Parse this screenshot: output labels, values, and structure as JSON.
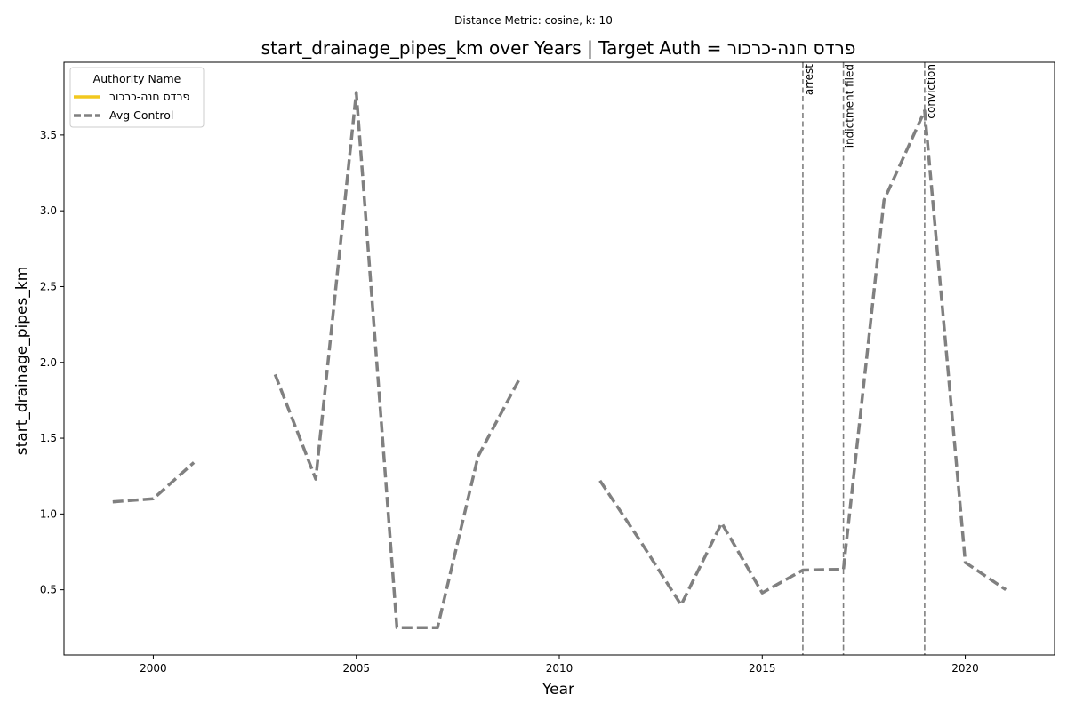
{
  "chart_data": {
    "type": "line",
    "suptitle": "Distance Metric: cosine, k: 10",
    "title": "start_drainage_pipes_km over Years | Target Auth = פרדס חנה-כרכור",
    "xlabel": "Year",
    "ylabel": "start_drainage_pipes_km",
    "xlim": [
      1997.8,
      2022.2
    ],
    "ylim": [
      0.07,
      3.98
    ],
    "xticks": [
      2000,
      2005,
      2010,
      2015,
      2020
    ],
    "yticks": [
      0.5,
      1.0,
      1.5,
      2.0,
      2.5,
      3.0,
      3.5
    ],
    "xtick_labels": [
      "2000",
      "2005",
      "2010",
      "2015",
      "2020"
    ],
    "ytick_labels": [
      "0.5",
      "1.0",
      "1.5",
      "2.0",
      "2.5",
      "3.0",
      "3.5"
    ],
    "grid": false,
    "legend": {
      "title": "Authority Name",
      "placement": "top-left",
      "entries": [
        {
          "label": "פרדס חנה-כרכור",
          "color": "#f2c81e",
          "style": "solid"
        },
        {
          "label": "Avg Control",
          "color": "#808080",
          "style": "dashed"
        }
      ]
    },
    "series": [
      {
        "name": "פרדס חנה-כרכור",
        "color": "#f2c81e",
        "style": "solid",
        "points": []
      },
      {
        "name": "Avg Control",
        "color": "#808080",
        "style": "dashed",
        "points": [
          [
            1999,
            1.08
          ],
          [
            2000,
            1.1
          ],
          [
            2001,
            1.34
          ],
          [
            2002,
            null
          ],
          [
            2003,
            1.92
          ],
          [
            2004,
            1.23
          ],
          [
            2005,
            3.78
          ],
          [
            2006,
            0.25
          ],
          [
            2007,
            0.25
          ],
          [
            2008,
            1.38
          ],
          [
            2009,
            1.88
          ],
          [
            2010,
            null
          ],
          [
            2011,
            1.22
          ],
          [
            2012,
            0.82
          ],
          [
            2013,
            0.4
          ],
          [
            2014,
            0.94
          ],
          [
            2015,
            0.48
          ],
          [
            2016,
            0.63
          ],
          [
            2017,
            0.635
          ],
          [
            2018,
            3.07
          ],
          [
            2019,
            3.66
          ],
          [
            2020,
            0.68
          ],
          [
            2021,
            0.5
          ]
        ]
      }
    ],
    "events": [
      {
        "x": 2016,
        "label": "arrest",
        "color": "#808080"
      },
      {
        "x": 2017,
        "label": "indictment filed",
        "color": "#808080"
      },
      {
        "x": 2019,
        "label": "conviction",
        "color": "#808080"
      }
    ]
  }
}
